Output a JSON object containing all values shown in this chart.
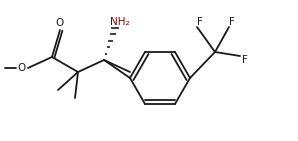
{
  "bg_color": "#ffffff",
  "line_color": "#1a1a1a",
  "text_color": "#1a1a1a",
  "label_NH2": "NH₂",
  "label_O_ester": "O",
  "label_O_methoxy": "O",
  "label_F1": "F",
  "label_F2": "F",
  "label_F3": "F",
  "line_width": 1.3,
  "font_size": 7.5,
  "figsize": [
    2.98,
    1.41
  ],
  "dpi": 100
}
